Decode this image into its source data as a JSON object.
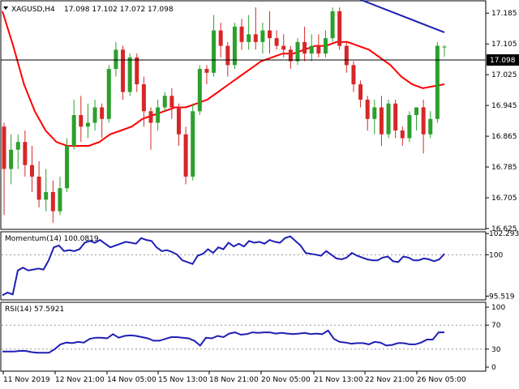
{
  "chart_data": {
    "type": "candlestick",
    "main": {
      "title": "XAGUSD,H4",
      "ohlc_values": "17.098 17.102 17.072 17.098",
      "current_price": "17.098",
      "ylim": [
        16.625,
        17.215
      ],
      "y_ticks": [
        "17.185",
        "17.105",
        "17.025",
        "16.945",
        "16.865",
        "16.785",
        "16.705",
        "16.625"
      ],
      "colors": {
        "bull": "#2ca02c",
        "bear": "#d62728",
        "ma": "#ff0000",
        "trend": "#1f1fb4",
        "axis": "#000000"
      },
      "candles": [
        [
          16.89,
          16.9,
          16.66,
          16.78
        ],
        [
          16.78,
          16.87,
          16.74,
          16.83
        ],
        [
          16.83,
          16.87,
          16.78,
          16.85
        ],
        [
          16.85,
          16.88,
          16.76,
          16.79
        ],
        [
          16.79,
          16.84,
          16.72,
          16.76
        ],
        [
          16.76,
          16.8,
          16.68,
          16.7
        ],
        [
          16.7,
          16.78,
          16.67,
          16.72
        ],
        [
          16.72,
          16.75,
          16.64,
          16.67
        ],
        [
          16.67,
          16.76,
          16.66,
          16.73
        ],
        [
          16.73,
          16.86,
          16.72,
          16.84
        ],
        [
          16.84,
          16.96,
          16.83,
          16.92
        ],
        [
          16.92,
          16.97,
          16.85,
          16.89
        ],
        [
          16.89,
          16.95,
          16.86,
          16.9
        ],
        [
          16.9,
          16.96,
          16.88,
          16.94
        ],
        [
          16.94,
          16.95,
          16.86,
          16.91
        ],
        [
          16.91,
          17.05,
          16.9,
          17.04
        ],
        [
          17.04,
          17.11,
          17.02,
          17.09
        ],
        [
          17.09,
          17.1,
          16.96,
          16.98
        ],
        [
          16.98,
          17.08,
          16.97,
          17.07
        ],
        [
          17.07,
          17.08,
          16.98,
          17.0
        ],
        [
          17.0,
          17.02,
          16.89,
          16.93
        ],
        [
          16.93,
          16.94,
          16.83,
          16.9
        ],
        [
          16.9,
          16.96,
          16.88,
          16.94
        ],
        [
          16.94,
          16.98,
          16.93,
          16.97
        ],
        [
          16.97,
          16.99,
          16.91,
          16.94
        ],
        [
          16.94,
          16.95,
          16.84,
          16.87
        ],
        [
          16.87,
          16.89,
          16.74,
          16.76
        ],
        [
          16.76,
          16.95,
          16.75,
          16.93
        ],
        [
          16.93,
          17.05,
          16.92,
          17.04
        ],
        [
          17.04,
          17.05,
          17.0,
          17.03
        ],
        [
          17.03,
          17.18,
          17.02,
          17.14
        ],
        [
          17.14,
          17.16,
          17.07,
          17.1
        ],
        [
          17.1,
          17.11,
          17.02,
          17.05
        ],
        [
          17.05,
          17.16,
          17.04,
          17.15
        ],
        [
          17.15,
          17.17,
          17.09,
          17.11
        ],
        [
          17.11,
          17.18,
          17.09,
          17.13
        ],
        [
          17.13,
          17.2,
          17.09,
          17.11
        ],
        [
          17.11,
          17.16,
          17.08,
          17.14
        ],
        [
          17.14,
          17.19,
          17.08,
          17.12
        ],
        [
          17.12,
          17.14,
          17.09,
          17.1
        ],
        [
          17.1,
          17.13,
          17.07,
          17.09
        ],
        [
          17.09,
          17.1,
          17.04,
          17.06
        ],
        [
          17.06,
          17.12,
          17.05,
          17.11
        ],
        [
          17.11,
          17.15,
          17.06,
          17.08
        ],
        [
          17.08,
          17.13,
          17.06,
          17.1
        ],
        [
          17.1,
          17.13,
          17.07,
          17.08
        ],
        [
          17.08,
          17.14,
          17.07,
          17.12
        ],
        [
          17.12,
          17.2,
          17.11,
          17.19
        ],
        [
          17.19,
          17.2,
          17.09,
          17.1
        ],
        [
          17.1,
          17.11,
          17.03,
          17.05
        ],
        [
          17.05,
          17.06,
          16.98,
          17.0
        ],
        [
          17.0,
          17.01,
          16.94,
          16.96
        ],
        [
          16.96,
          16.97,
          16.88,
          16.91
        ],
        [
          16.91,
          16.96,
          16.87,
          16.94
        ],
        [
          16.94,
          16.97,
          16.84,
          16.87
        ],
        [
          16.87,
          16.96,
          16.86,
          16.95
        ],
        [
          16.95,
          16.96,
          16.86,
          16.88
        ],
        [
          16.88,
          16.89,
          16.84,
          16.86
        ],
        [
          16.86,
          16.93,
          16.85,
          16.92
        ],
        [
          16.92,
          16.94,
          16.88,
          16.94
        ],
        [
          16.94,
          16.96,
          16.82,
          16.87
        ],
        [
          16.87,
          16.93,
          16.86,
          16.91
        ],
        [
          16.91,
          17.11,
          16.9,
          17.1
        ],
        [
          17.098,
          17.102,
          17.072,
          17.098
        ]
      ],
      "ma": [
        17.19,
        17.1,
        17.0,
        16.93,
        16.88,
        16.85,
        16.84,
        16.84,
        16.84,
        16.85,
        16.87,
        16.88,
        16.89,
        16.91,
        16.92,
        16.93,
        16.94,
        16.94,
        16.95,
        16.96,
        16.98,
        17.0,
        17.02,
        17.04,
        17.06,
        17.07,
        17.08,
        17.08,
        17.09,
        17.1,
        17.1,
        17.11,
        17.11,
        17.1,
        17.09,
        17.07,
        17.05,
        17.02,
        17.0,
        16.99,
        16.995,
        17.0
      ],
      "trendline": [
        [
          51,
          17.22
        ],
        [
          63,
          17.135
        ]
      ]
    },
    "momentum": {
      "label": "Momentum(14) 100.0819",
      "ylim": [
        95.2,
        102.4
      ],
      "y_ticks": [
        "102.2936",
        "100",
        "95.519"
      ],
      "color": "#1f1fb4",
      "values": [
        95.6,
        95.9,
        95.7,
        98.3,
        98.6,
        98.3,
        98.4,
        98.5,
        98.4,
        99.4,
        100.8,
        101.0,
        100.4,
        100.5,
        100.4,
        100.6,
        101.3,
        101.5,
        101.3,
        101.6,
        101.2,
        100.8,
        101.0,
        101.2,
        101.4,
        101.3,
        101.2,
        101.8,
        101.6,
        101.5,
        100.8,
        100.4,
        100.5,
        100.3,
        100.0,
        99.4,
        99.2,
        99.0,
        99.9,
        100.1,
        100.6,
        100.2,
        100.8,
        100.6,
        101.3,
        100.9,
        101.2,
        100.9,
        101.5,
        101.3,
        101.4,
        101.2,
        101.6,
        101.4,
        101.3,
        101.8,
        102.0,
        101.5,
        101.0,
        100.2,
        100.1,
        100.0,
        99.9,
        100.4,
        100.0,
        99.6,
        99.5,
        99.7,
        100.2,
        99.9,
        99.7,
        99.5,
        99.4,
        99.4,
        99.7,
        99.8,
        99.3,
        99.2,
        99.8,
        99.7,
        99.4,
        99.4,
        99.6,
        99.5,
        99.3,
        99.5,
        100.1
      ],
      "start_index": 0
    },
    "rsi": {
      "label": "RSI(14) 57.5921",
      "ylim": [
        0,
        100
      ],
      "y_ticks": [
        "100",
        "70",
        "30",
        "0"
      ],
      "levels": [
        70,
        30
      ],
      "color": "#1f1fb4",
      "values": [
        26,
        26,
        26,
        27,
        27,
        25,
        24,
        24,
        24,
        30,
        38,
        41,
        40,
        42,
        41,
        47,
        49,
        49,
        48,
        55,
        49,
        52,
        53,
        52,
        50,
        48,
        44,
        44,
        47,
        50,
        50,
        49,
        48,
        44,
        36,
        49,
        48,
        52,
        50,
        56,
        58,
        54,
        55,
        58,
        57,
        58,
        58,
        56,
        57,
        56,
        55,
        56,
        57,
        55,
        56,
        55,
        61,
        47,
        42,
        41,
        39,
        40,
        40,
        38,
        42,
        41,
        36,
        37,
        40,
        40,
        38,
        38,
        41,
        46,
        46,
        58,
        58
      ]
    },
    "x_labels": [
      "11 Nov 2019",
      "12 Nov 21:00",
      "14 Nov 05:00",
      "15 Nov 13:00",
      "18 Nov 21:00",
      "20 Nov 05:00",
      "21 Nov 13:00",
      "22 Nov 21:00",
      "26 Nov 05:00"
    ]
  }
}
